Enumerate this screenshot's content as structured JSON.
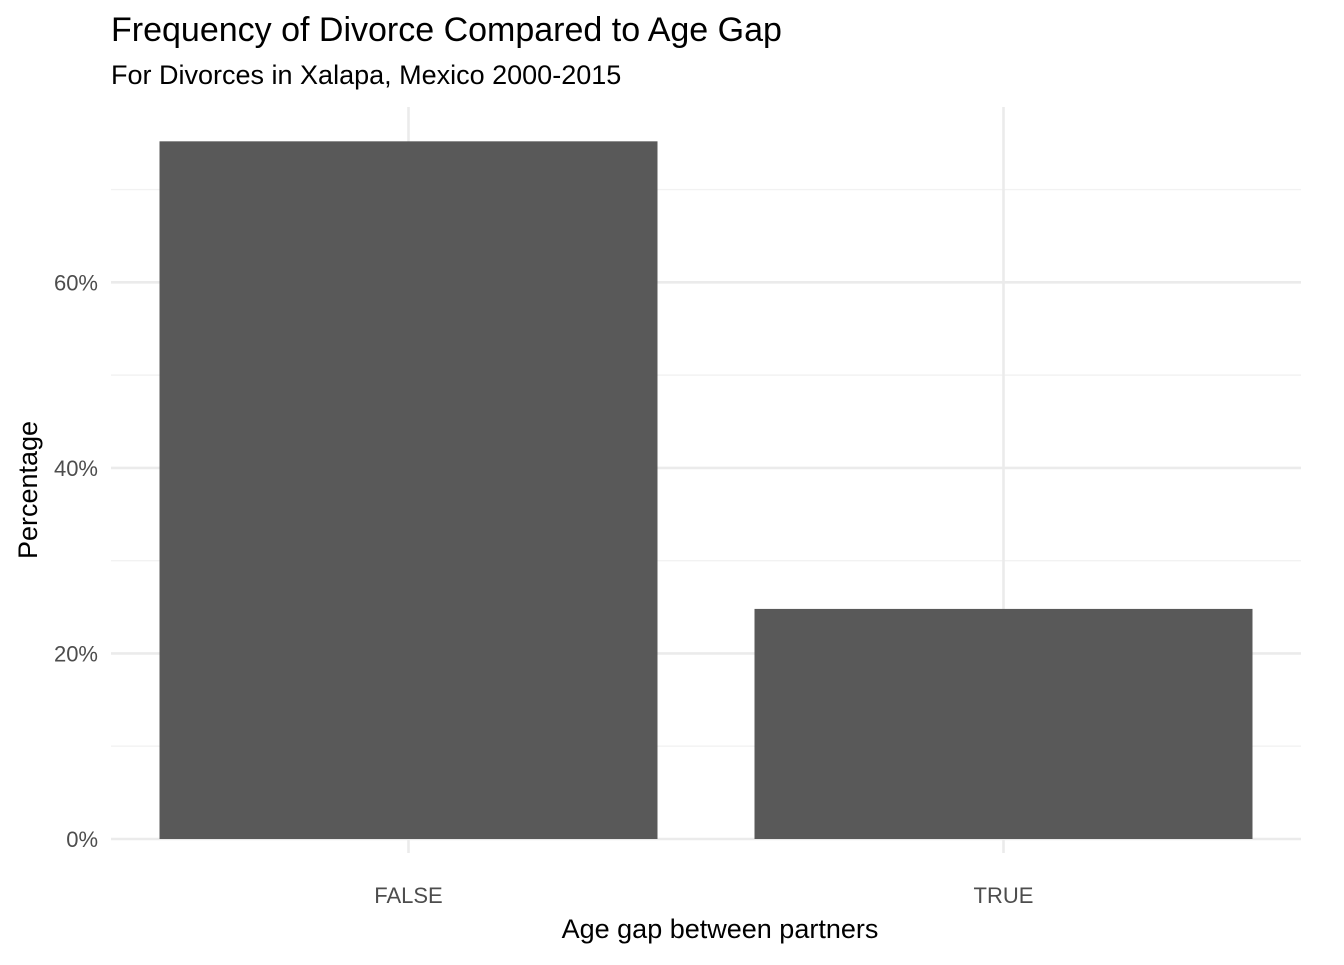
{
  "chart_data": {
    "type": "bar",
    "title": "Frequency of Divorce Compared to Age Gap",
    "subtitle": "For Divorces in Xalapa, Mexico 2000-2015",
    "xlabel": "Age gap between partners",
    "ylabel": "Percentage",
    "categories": [
      "FALSE",
      "TRUE"
    ],
    "values": [
      75.2,
      24.8
    ],
    "value_unit": "%",
    "ylim": [
      0,
      78.9
    ],
    "yticks": [
      0,
      20,
      40,
      60
    ],
    "ytick_labels": [
      "0%",
      "20%",
      "40%",
      "60%"
    ],
    "grid": true,
    "legend": "none",
    "colors": {
      "bar": "#595959",
      "grid_major": "#ebebeb",
      "grid_minor": "#f2f2f2",
      "tick_text": "#4d4d4d",
      "text": "#000000",
      "background": "#ffffff"
    }
  }
}
